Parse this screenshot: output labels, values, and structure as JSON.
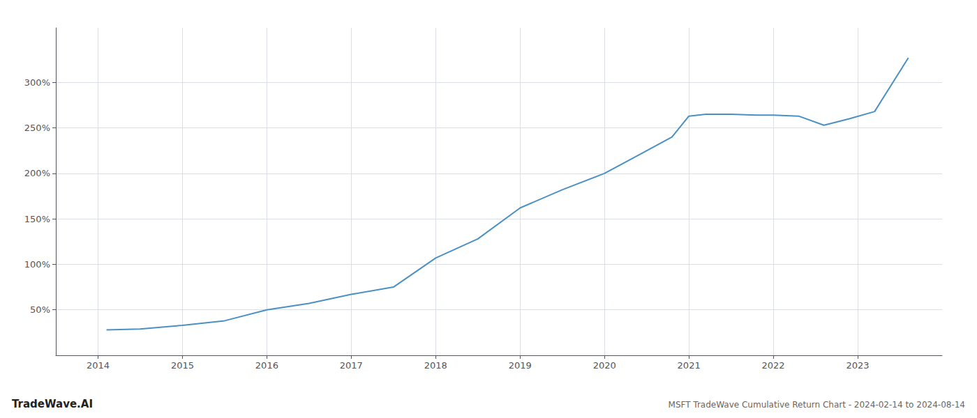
{
  "chart_data": {
    "type": "line",
    "title": "MSFT TradeWave Cumulative Return Chart - 2024-02-14 to 2024-08-14",
    "annotations": [
      "TradeWave.AI"
    ],
    "x": [
      2014.1,
      2014.5,
      2015.0,
      2015.5,
      2016.0,
      2016.5,
      2017.0,
      2017.5,
      2018.0,
      2018.5,
      2019.0,
      2019.5,
      2020.0,
      2020.4,
      2020.8,
      2021.0,
      2021.2,
      2021.5,
      2021.8,
      2022.0,
      2022.3,
      2022.6,
      2022.9,
      2023.2,
      2023.6
    ],
    "values": [
      28,
      29,
      33,
      38,
      50,
      57,
      67,
      75,
      107,
      128,
      162,
      182,
      200,
      220,
      240,
      263,
      265,
      265,
      264,
      264,
      263,
      253,
      260,
      268,
      327
    ],
    "color": "#4a90c4",
    "xlim": [
      2013.5,
      2024.0
    ],
    "ylim": [
      0,
      360
    ],
    "xticks": [
      2014,
      2015,
      2016,
      2017,
      2018,
      2019,
      2020,
      2021,
      2022,
      2023
    ],
    "yticks": [
      {
        "value": 50,
        "label": "50%"
      },
      {
        "value": 100,
        "label": "100%"
      },
      {
        "value": 150,
        "label": "150%"
      },
      {
        "value": 200,
        "label": "200%"
      },
      {
        "value": 250,
        "label": "250%"
      },
      {
        "value": 300,
        "label": "300%"
      }
    ],
    "grid": true
  }
}
